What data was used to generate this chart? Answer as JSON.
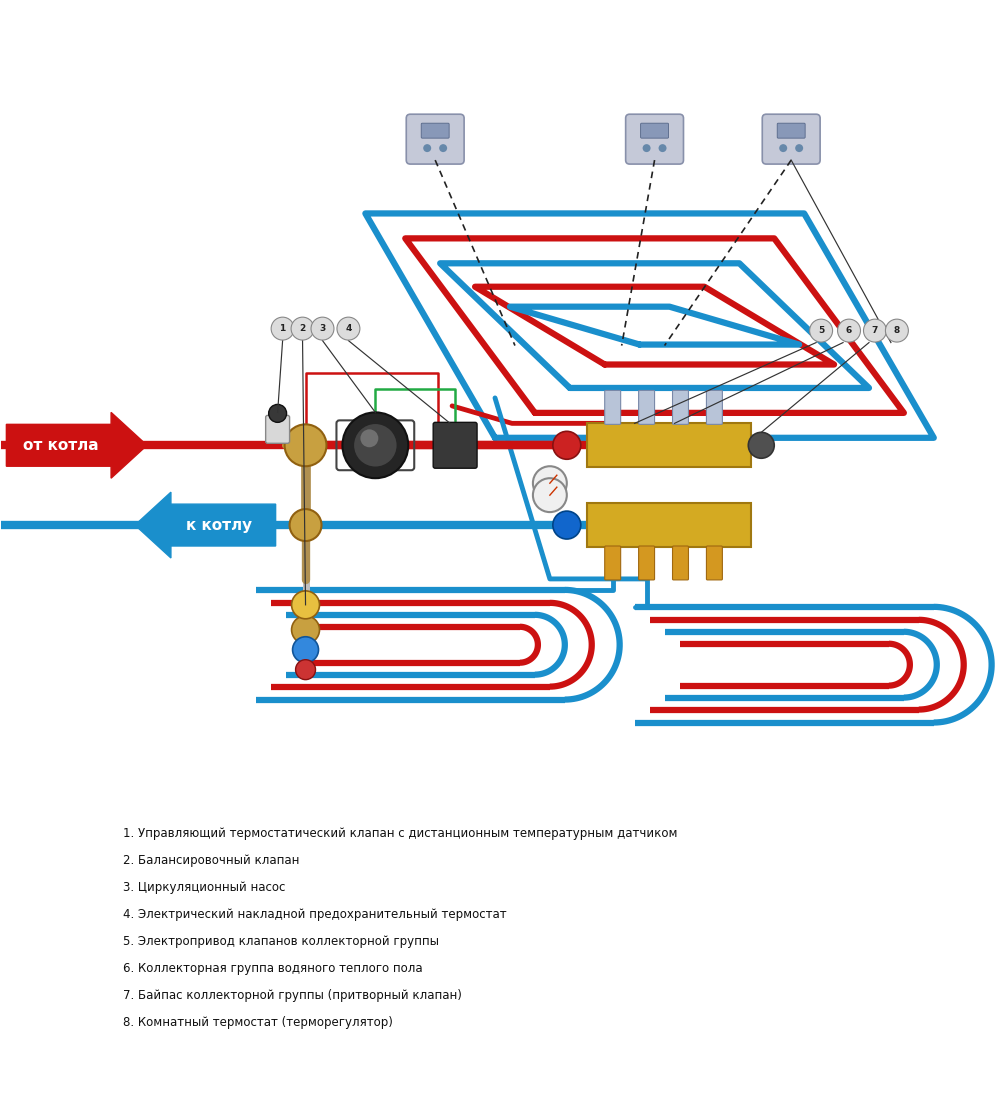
{
  "background_color": "#ffffff",
  "hot_color": "#cc1111",
  "cold_color": "#1a8fcc",
  "pipe_lw_main": 6,
  "pipe_lw_floor": 4,
  "label_from": "от котла",
  "label_to": "к котлу",
  "green_color": "#22aa44",
  "legend_items": [
    "1. Управляющий термостатический клапан с дистанционным температурным датчиком",
    "2. Балансировочный клапан",
    "3. Циркуляционный насос",
    "4. Электрический накладной предохранительный термостат",
    "5. Электропривод клапанов коллекторной группы",
    "6. Коллекторная группа водяного теплого пола",
    "7. Байпас коллекторной группы (притворный клапан)",
    "8. Комнатный термостат (терморегулятор)"
  ]
}
